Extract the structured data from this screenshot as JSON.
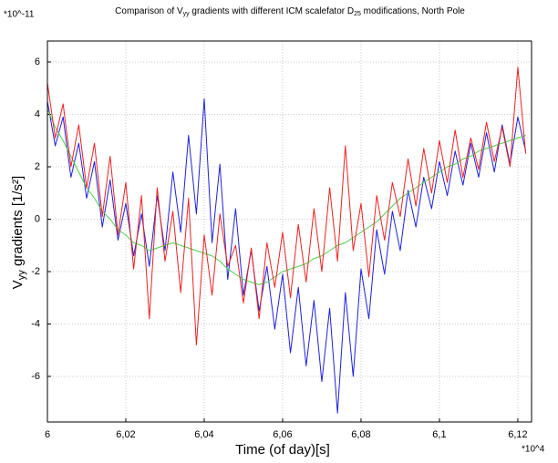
{
  "chart_data": {
    "type": "line",
    "title": [
      "Comparison of V",
      "yy",
      " gradients with different ICM scalefator D",
      "25",
      " modifications, North Pole"
    ],
    "y_label": [
      "V",
      "yy",
      " gradients [1/s²]"
    ],
    "x_label": "Time (of day)[s]",
    "y_scale_label": "*10^-11",
    "x_scale_label": "*10^4",
    "x": [
      6,
      6.002,
      6.004,
      6.006,
      6.008,
      6.01,
      6.012,
      6.014,
      6.016,
      6.018,
      6.02,
      6.022,
      6.024,
      6.026,
      6.028,
      6.03,
      6.032,
      6.034,
      6.036,
      6.038,
      6.04,
      6.042,
      6.044,
      6.046,
      6.048,
      6.05,
      6.052,
      6.054,
      6.056,
      6.058,
      6.06,
      6.062,
      6.064,
      6.066,
      6.068,
      6.07,
      6.072,
      6.074,
      6.076,
      6.078,
      6.08,
      6.082,
      6.084,
      6.086,
      6.088,
      6.09,
      6.092,
      6.094,
      6.096,
      6.098,
      6.1,
      6.102,
      6.104,
      6.106,
      6.108,
      6.11,
      6.112,
      6.114,
      6.116,
      6.118,
      6.12,
      6.122
    ],
    "series": [
      {
        "color": "#1f1fe0",
        "values": [
          4.5,
          2.8,
          3.9,
          1.6,
          2.9,
          0.8,
          2.2,
          -0.3,
          1.5,
          -0.8,
          0.6,
          -1.4,
          0.2,
          -1.8,
          0.9,
          -1.2,
          1.8,
          -0.5,
          3.2,
          0.2,
          4.6,
          -0.9,
          2.1,
          -2.3,
          0.4,
          -2.9,
          -1.2,
          -3.5,
          -1.8,
          -4.2,
          -2.1,
          -5.1,
          -2.6,
          -5.6,
          -3.1,
          -6.2,
          -3.4,
          -7.4,
          -2.8,
          -6.0,
          -1.9,
          -3.8,
          -0.4,
          -2.1,
          0.3,
          -1.2,
          1.1,
          -0.3,
          1.6,
          0.4,
          2.2,
          0.9,
          2.6,
          1.3,
          2.9,
          1.6,
          3.3,
          1.8,
          3.6,
          2.1,
          3.9,
          2.6
        ]
      },
      {
        "color": "#4ccf4c",
        "values": [
          4.2,
          3.5,
          3.0,
          2.4,
          1.8,
          1.2,
          0.8,
          0.3,
          0.0,
          -0.4,
          -0.6,
          -0.9,
          -1.0,
          -1.2,
          -1.1,
          -1.0,
          -0.9,
          -1.0,
          -1.1,
          -1.2,
          -1.3,
          -1.4,
          -1.6,
          -1.9,
          -2.1,
          -2.3,
          -2.4,
          -2.5,
          -2.4,
          -2.2,
          -2.0,
          -1.9,
          -1.8,
          -1.7,
          -1.5,
          -1.4,
          -1.2,
          -1.0,
          -0.9,
          -0.7,
          -0.5,
          -0.3,
          -0.1,
          0.2,
          0.5,
          0.8,
          1.0,
          1.2,
          1.4,
          1.6,
          1.8,
          2.0,
          2.1,
          2.3,
          2.4,
          2.6,
          2.7,
          2.8,
          2.9,
          3.0,
          3.1,
          3.2
        ]
      },
      {
        "color": "#f02020",
        "values": [
          5.2,
          3.1,
          4.4,
          2.0,
          3.6,
          1.2,
          2.9,
          0.1,
          2.4,
          -0.6,
          1.4,
          -1.9,
          0.9,
          -3.8,
          1.2,
          -1.6,
          0.3,
          -2.8,
          0.8,
          -4.8,
          -0.6,
          -2.9,
          0.2,
          -1.8,
          -1.0,
          -3.2,
          -1.1,
          -3.8,
          -0.9,
          -2.6,
          -0.5,
          -3.0,
          -0.2,
          -2.4,
          0.4,
          -2.0,
          1.2,
          -1.6,
          2.8,
          -1.2,
          0.6,
          -2.2,
          0.9,
          -0.8,
          1.4,
          0.1,
          2.3,
          0.5,
          2.7,
          1.0,
          3.0,
          1.4,
          3.4,
          1.6,
          3.1,
          1.9,
          3.7,
          2.2,
          3.5,
          2.0,
          5.8,
          2.5
        ]
      }
    ],
    "xlim": [
      6,
      6.1235
    ],
    "ylim": [
      -7.74,
      6.8
    ],
    "xticks": [
      6,
      {
        "value": 6.02,
        "label": "6,02"
      },
      {
        "value": 6.04,
        "label": "6,04"
      },
      {
        "value": 6.06,
        "label": "6,06"
      },
      {
        "value": 6.08,
        "label": "6,08"
      },
      {
        "value": 6.1,
        "label": "6,1"
      },
      {
        "value": 6.12,
        "label": "6,12"
      }
    ],
    "yticks": [
      -6,
      -4,
      -2,
      0,
      2,
      4,
      6
    ],
    "grid": true
  }
}
